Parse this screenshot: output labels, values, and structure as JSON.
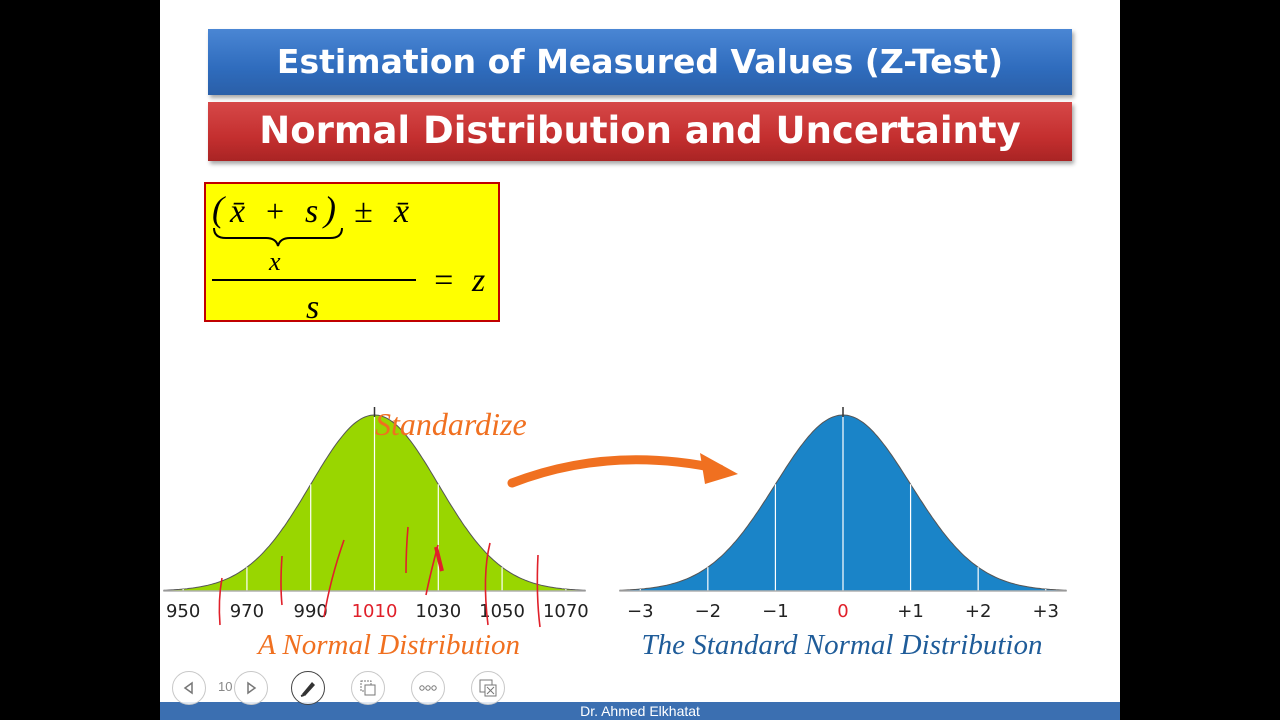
{
  "slide": {
    "title": "Estimation of Measured Values (Z-Test)",
    "subtitle": "Normal Distribution and Uncertainty",
    "formula": {
      "open_paren": "(",
      "xbar": "x̄",
      "plus": "+",
      "s_var": "s",
      "close_paren": ")",
      "plus_minus": "±",
      "xbar2": "x̄",
      "under_brace_label": "x",
      "denominator": "s",
      "equals": "=",
      "z": "z"
    },
    "standardize_label": "Standardize",
    "left_axis_ticks": [
      "950",
      "970",
      "990",
      "1010",
      "1030",
      "1050",
      "1070"
    ],
    "right_axis_ticks": [
      "−3",
      "−2",
      "−1",
      "0",
      "+1",
      "+2",
      "+3"
    ],
    "left_caption": "A Normal Distribution",
    "right_caption": "The Standard Normal Distribution",
    "footer": "Dr. Ahmed Elkhatat",
    "page_number": "10"
  },
  "colors": {
    "blue_banner": "#2f6cbd",
    "red_banner": "#c42f2f",
    "formula_bg": "#ffff00",
    "green_curve": "#99d600",
    "blue_curve": "#1a84c8",
    "orange": "#f07020",
    "highlight_red": "#e0202a"
  },
  "icons": [
    "prev-slide-icon",
    "next-slide-icon",
    "pen-icon",
    "slides-grid-icon",
    "more-icon",
    "zoom-icon"
  ],
  "chart_data": [
    {
      "type": "area",
      "title": "A Normal Distribution",
      "mean": 1010,
      "sd": 20,
      "x_ticks": [
        950,
        970,
        990,
        1010,
        1030,
        1050,
        1070
      ],
      "xlim": [
        944,
        1076
      ]
    },
    {
      "type": "area",
      "title": "The Standard Normal Distribution",
      "mean": 0,
      "sd": 1,
      "x_ticks": [
        -3,
        -2,
        -1,
        0,
        1,
        2,
        3
      ],
      "xlim": [
        -3.3,
        3.3
      ]
    }
  ]
}
